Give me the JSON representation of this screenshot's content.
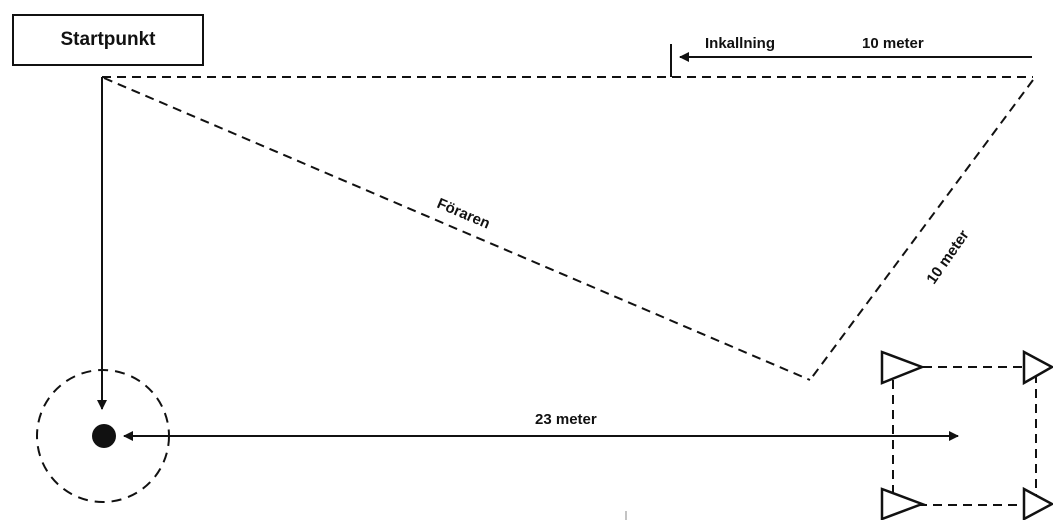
{
  "diagram": {
    "start_label": "Startpunkt",
    "recall_label": "Inkallning",
    "top_distance_label": "10 meter",
    "handler_label": "Föraren",
    "diagonal_distance_label": "10 meter",
    "bottom_distance_label": "23 meter"
  },
  "colors": {
    "ink": "#111111",
    "background": "#ffffff"
  }
}
